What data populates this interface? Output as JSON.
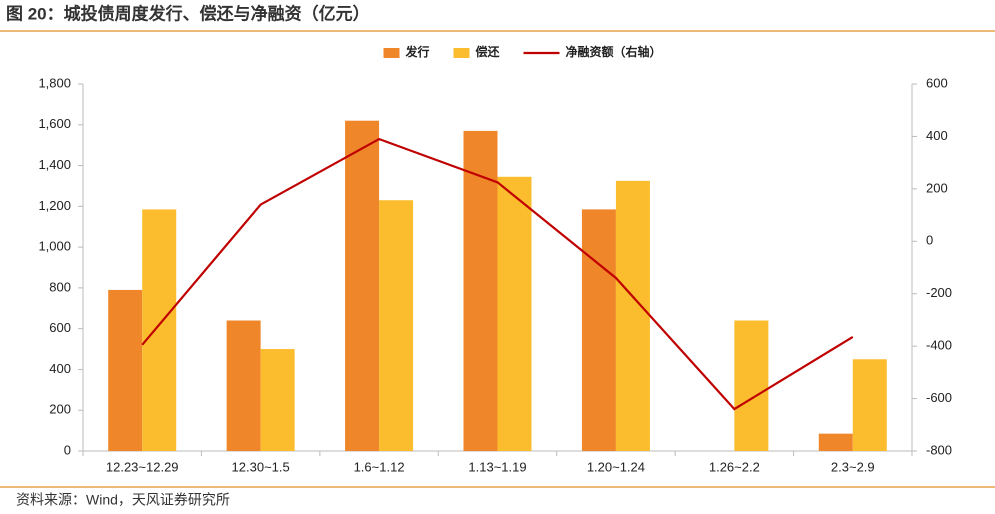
{
  "title": "图 20：城投债周度发行、偿还与净融资（亿元）",
  "source": "资料来源：Wind，天风证券研究所",
  "chart_data": {
    "type": "bar",
    "categories": [
      "12.23~12.29",
      "12.30~1.5",
      "1.6~1.12",
      "1.13~1.19",
      "1.20~1.24",
      "1.26~2.2",
      "2.3~2.9"
    ],
    "series": [
      {
        "name": "发行",
        "type": "bar",
        "color": "#f0862a",
        "values": [
          790,
          640,
          1620,
          1570,
          1185,
          null,
          85
        ]
      },
      {
        "name": "偿还",
        "type": "bar",
        "color": "#fbbd2e",
        "values": [
          1185,
          500,
          1230,
          1345,
          1325,
          640,
          450
        ]
      },
      {
        "name": "净融资额（右轴）",
        "type": "line",
        "axis": "y2",
        "color": "#c00000",
        "values": [
          -395,
          140,
          390,
          225,
          -140,
          -640,
          -365
        ]
      }
    ],
    "ylim": [
      0,
      1800
    ],
    "yticks": [
      0,
      200,
      400,
      600,
      800,
      {
        "value": 1000,
        "label": "1,000"
      },
      {
        "value": 1200,
        "label": "1,200"
      },
      {
        "value": 1400,
        "label": "1,400"
      },
      {
        "value": 1600,
        "label": "1,600"
      },
      {
        "value": 1800,
        "label": "1,800"
      }
    ],
    "y2lim": [
      -800,
      600
    ],
    "y2ticks": [
      -800,
      -600,
      -400,
      -200,
      0,
      200,
      400,
      600
    ],
    "legend": "top"
  }
}
